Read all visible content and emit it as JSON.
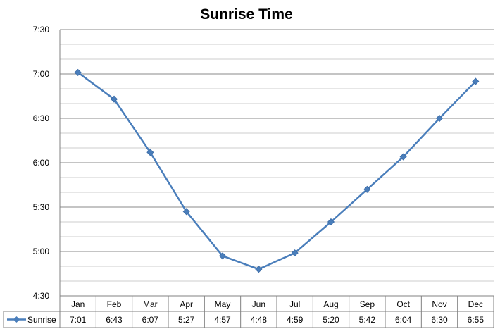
{
  "chart_data": {
    "type": "line",
    "title": "Sunrise Time",
    "categories": [
      "Jan",
      "Feb",
      "Mar",
      "Apr",
      "May",
      "Jun",
      "Jul",
      "Aug",
      "Sep",
      "Oct",
      "Nov",
      "Dec"
    ],
    "y_tick_labels": [
      "4:30",
      "5:00",
      "5:30",
      "6:00",
      "6:30",
      "7:00",
      "7:30"
    ],
    "ylim_minutes": [
      270,
      450
    ],
    "y_major_step_minutes": 30,
    "y_minor_step_minutes": 10,
    "grid": true,
    "legend": "data-table-left",
    "series": [
      {
        "name": "Sunrise",
        "color": "#4a7ebb",
        "marker": "diamond",
        "values_minutes": [
          421,
          403,
          367,
          327,
          297,
          288,
          299,
          320,
          342,
          364,
          390,
          415
        ],
        "labels": [
          "7:01",
          "6:43",
          "6:07",
          "5:27",
          "4:57",
          "4:48",
          "4:59",
          "5:20",
          "5:42",
          "6:04",
          "6:30",
          "6:55"
        ]
      }
    ]
  }
}
